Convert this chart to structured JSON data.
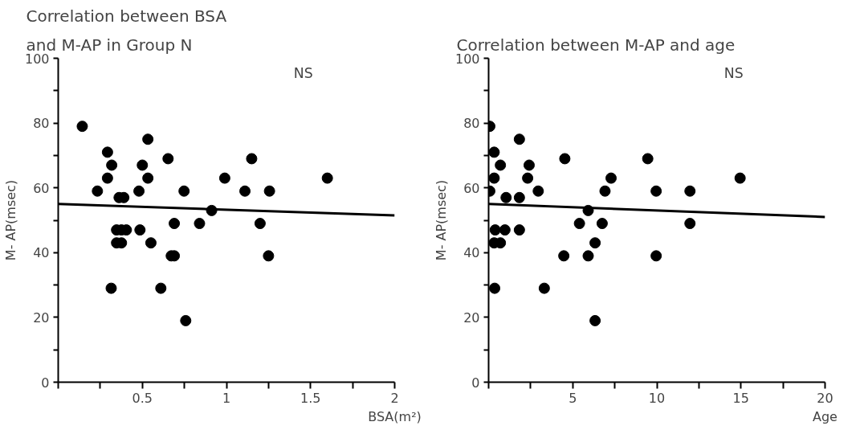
{
  "chart_data": [
    {
      "type": "scatter",
      "title": "Correlation between BSA and M-AP in Group N",
      "xlabel": "BSA(m²)",
      "ylabel": "M- AP(msec)",
      "annotations": [
        "NS"
      ],
      "grid": false,
      "xlim": [
        0,
        2
      ],
      "ylim": [
        0,
        100
      ],
      "xticks": [
        {
          "value": 0,
          "label": null
        },
        {
          "value": 0.25,
          "label": null
        },
        0.5,
        {
          "value": 0.75,
          "label": null
        },
        1,
        {
          "value": 1.25,
          "label": null
        },
        1.5,
        {
          "value": 1.75,
          "label": null
        },
        2
      ],
      "yticks": [
        0,
        {
          "value": 10,
          "label": null
        },
        20,
        {
          "value": 30,
          "label": null
        },
        40,
        {
          "value": 50,
          "label": null
        },
        60,
        {
          "value": 70,
          "label": null
        },
        80,
        {
          "value": 90,
          "label": null
        },
        100
      ],
      "series": [
        {
          "marker": "circle",
          "color": "#000000",
          "x": [
            0.143,
            0.233,
            0.293,
            0.318,
            0.293,
            0.315,
            0.362,
            0.39,
            0.347,
            0.376,
            0.405,
            0.347,
            0.376,
            0.48,
            0.486,
            0.5,
            0.533,
            0.533,
            0.551,
            0.61,
            0.653,
            0.672,
            0.69,
            0.69,
            0.748,
            0.758,
            0.84,
            0.912,
            0.99,
            1.11,
            1.15,
            1.2,
            1.256,
            1.25,
            1.6
          ],
          "values": [
            79,
            59,
            71,
            67,
            63,
            29,
            57,
            57,
            47,
            47,
            47,
            43,
            43,
            59,
            47,
            67,
            75,
            63,
            43,
            29,
            69,
            39,
            39,
            49,
            59,
            19,
            49,
            53,
            63,
            59,
            69,
            49,
            59,
            39,
            63
          ]
        },
        {
          "type": "line",
          "color": "#000000",
          "x": [
            0,
            2
          ],
          "values": [
            55,
            51.5
          ]
        }
      ]
    },
    {
      "type": "scatter",
      "title": "Correlation between M-AP and age",
      "xlabel": "Age",
      "ylabel": "M- AP(msec)",
      "annotations": [
        "NS"
      ],
      "grid": false,
      "xlim": [
        0,
        20
      ],
      "ylim": [
        0,
        100
      ],
      "xticks": [
        {
          "value": 0,
          "label": null
        },
        {
          "value": 2.5,
          "label": null
        },
        5,
        {
          "value": 7.5,
          "label": null
        },
        10,
        {
          "value": 12.5,
          "label": null
        },
        15,
        {
          "value": 17.5,
          "label": null
        },
        20
      ],
      "yticks": [
        0,
        {
          "value": 10,
          "label": null
        },
        20,
        {
          "value": 30,
          "label": null
        },
        40,
        {
          "value": 50,
          "label": null
        },
        60,
        {
          "value": 70,
          "label": null
        },
        80,
        {
          "value": 90,
          "label": null
        },
        100
      ],
      "series": [
        {
          "marker": "circle",
          "color": "#000000",
          "x": [
            0.07,
            0.07,
            0.33,
            0.33,
            0.39,
            0.33,
            0.7,
            0.36,
            0.7,
            1.04,
            0.97,
            1.83,
            1.83,
            1.83,
            2.32,
            2.41,
            2.95,
            3.31,
            4.53,
            4.47,
            5.4,
            5.92,
            5.92,
            6.33,
            6.33,
            6.75,
            6.92,
            7.28,
            9.46,
            9.96,
            9.96,
            11.97,
            11.97,
            14.95
          ],
          "values": [
            79,
            59,
            71,
            63,
            47,
            43,
            43,
            29,
            67,
            57,
            47,
            75,
            57,
            47,
            63,
            67,
            59,
            29,
            69,
            39,
            49,
            53,
            39,
            43,
            19,
            49,
            59,
            63,
            69,
            59,
            39,
            59,
            49,
            63
          ]
        },
        {
          "type": "line",
          "color": "#000000",
          "x": [
            0,
            20
          ],
          "values": [
            55,
            51
          ]
        }
      ]
    }
  ]
}
